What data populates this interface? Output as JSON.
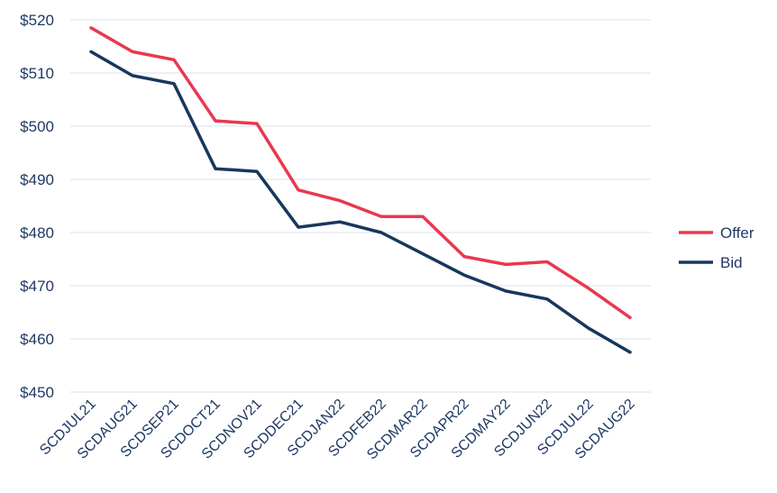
{
  "chart_data": {
    "type": "line",
    "categories": [
      "SCDJUL21",
      "SCDAUG21",
      "SCDSEP21",
      "SCDOCT21",
      "SCDNOV21",
      "SCDDEC21",
      "SCDJAN22",
      "SCDFEB22",
      "SCDMAR22",
      "SCDAPR22",
      "SCDMAY22",
      "SCDJUN22",
      "SCDJUL22",
      "SCDAUG22"
    ],
    "series": [
      {
        "name": "Offer",
        "color": "#e8384f",
        "values": [
          518.5,
          514,
          512.5,
          501,
          500.5,
          488,
          486,
          483,
          483,
          475.5,
          474,
          474.5,
          469.5,
          464
        ]
      },
      {
        "name": "Bid",
        "color": "#17375e",
        "values": [
          514,
          509.5,
          508,
          492,
          491.5,
          481,
          482,
          480,
          476,
          472,
          469,
          467.5,
          462,
          457.5
        ]
      }
    ],
    "ylim": [
      450,
      520
    ],
    "yticks": [
      "$450",
      "$460",
      "$470",
      "$480",
      "$490",
      "$500",
      "$510",
      "$520"
    ],
    "ytick_values": [
      450,
      460,
      470,
      480,
      490,
      500,
      510,
      520
    ],
    "grid": true,
    "legend": "right"
  }
}
